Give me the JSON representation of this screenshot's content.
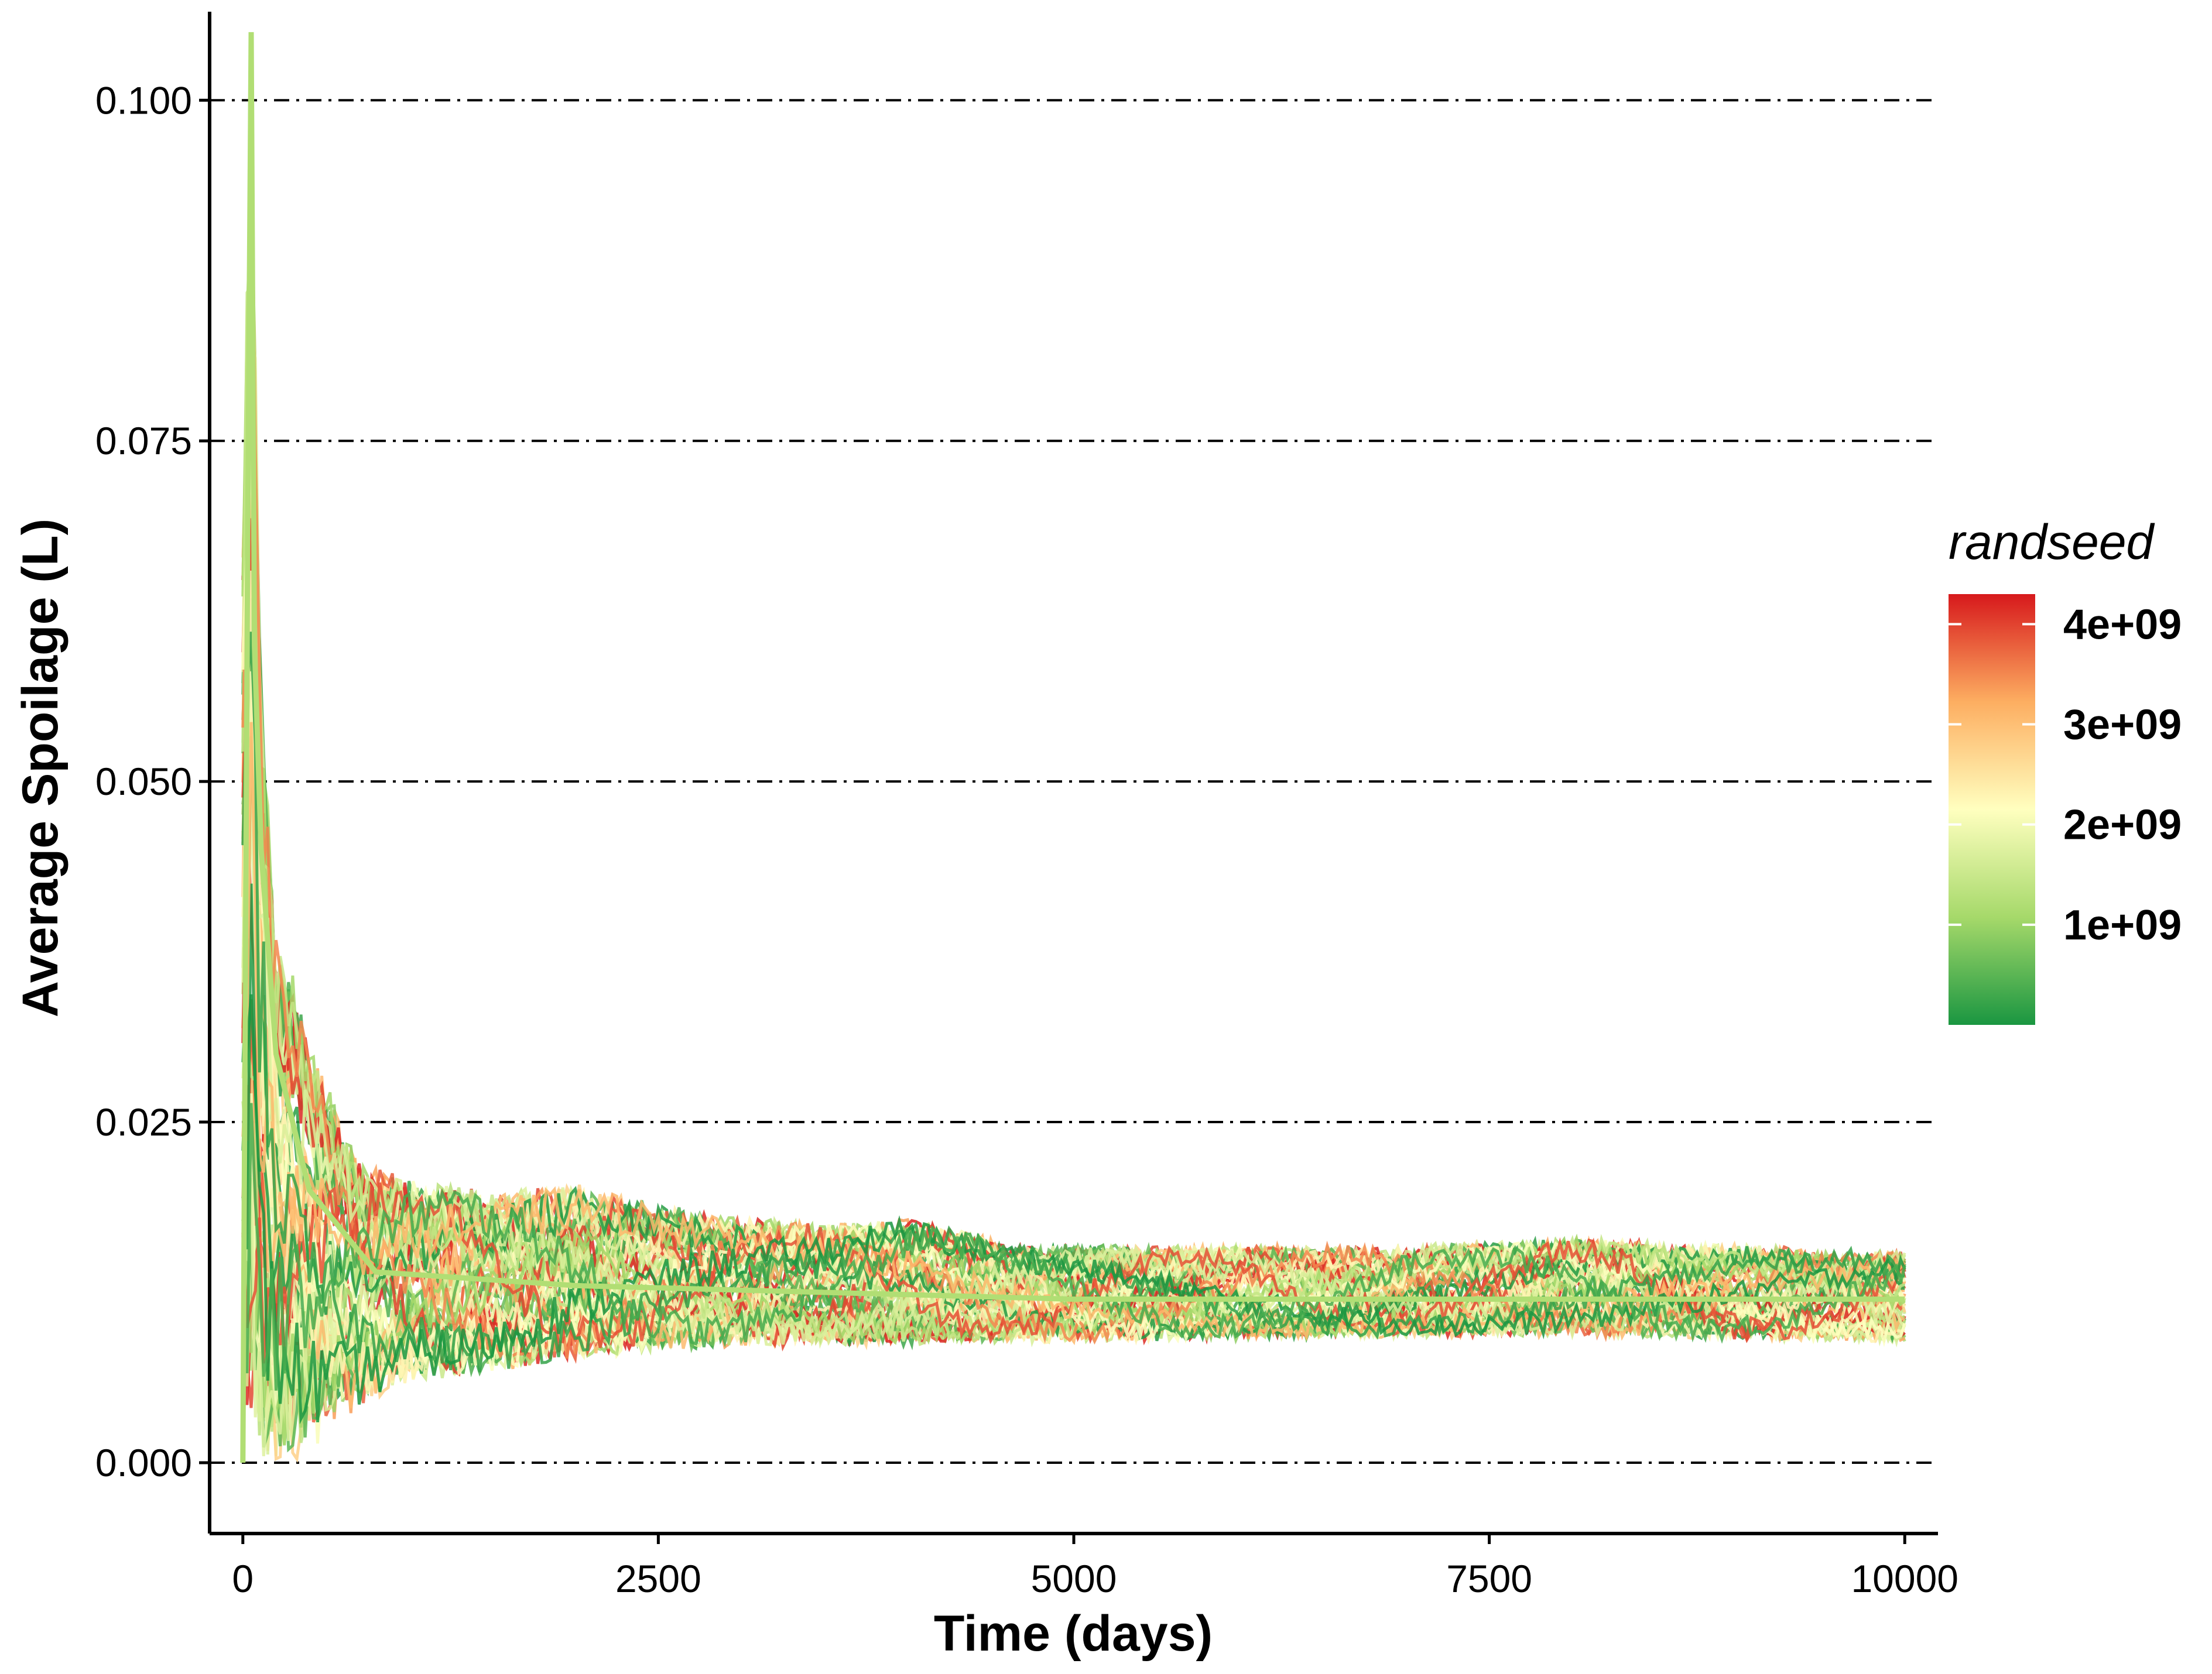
{
  "chart_data": {
    "type": "line",
    "title": "",
    "xlabel": "Time (days)",
    "ylabel": "Average Spoilage (L)",
    "xlim": [
      -200,
      10200
    ],
    "ylim": [
      -0.0052,
      0.1065
    ],
    "x_ticks": [
      {
        "value": 0,
        "label": "0"
      },
      {
        "value": 2500,
        "label": "2500"
      },
      {
        "value": 5000,
        "label": "5000"
      },
      {
        "value": 7500,
        "label": "7500"
      },
      {
        "value": 10000,
        "label": "10000"
      }
    ],
    "y_ticks": [
      {
        "value": 0.0,
        "label": "0.000"
      },
      {
        "value": 0.025,
        "label": "0.025"
      },
      {
        "value": 0.05,
        "label": "0.050"
      },
      {
        "value": 0.075,
        "label": "0.075"
      },
      {
        "value": 0.1,
        "label": "0.100"
      }
    ],
    "grid": "horizontal dash-dot",
    "legend": {
      "title": "randseed",
      "placement": "right",
      "type": "colorbar",
      "min": 0,
      "max": 4300000000,
      "ticks": [
        {
          "value": 1000000000,
          "label": "1e+09"
        },
        {
          "value": 2000000000,
          "label": "2e+09"
        },
        {
          "value": 3000000000,
          "label": "3e+09"
        },
        {
          "value": 4000000000,
          "label": "4e+09"
        }
      ],
      "gradient_colors": [
        "#1a9641",
        "#a6d96a",
        "#ffffbf",
        "#fdae61",
        "#d7191c"
      ]
    },
    "envelope": {
      "x": [
        0,
        50,
        100,
        200,
        300,
        400,
        500,
        700,
        1000,
        1500,
        2000,
        2500,
        3000,
        3500,
        4000,
        4500,
        5000,
        6000,
        7000,
        8000,
        9000,
        10000
      ],
      "upper": [
        0.068,
        0.105,
        0.062,
        0.039,
        0.036,
        0.031,
        0.028,
        0.022,
        0.021,
        0.02,
        0.0205,
        0.019,
        0.018,
        0.0175,
        0.018,
        0.0165,
        0.016,
        0.016,
        0.016,
        0.0165,
        0.016,
        0.0155
      ],
      "lower": [
        0.0,
        0.0,
        0.0,
        0.0,
        0.0,
        0.0005,
        0.002,
        0.004,
        0.006,
        0.0065,
        0.0075,
        0.0082,
        0.0085,
        0.0085,
        0.0086,
        0.0088,
        0.0088,
        0.009,
        0.0092,
        0.0092,
        0.009,
        0.0088
      ]
    }
  }
}
